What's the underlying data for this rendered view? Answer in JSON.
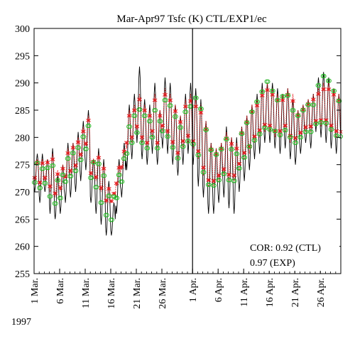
{
  "chart_data": {
    "type": "line",
    "title": "Mar-Apr97 Tsfc (K) CTL/EXP1/ec",
    "xlabel": "",
    "ylabel": "",
    "ylim": [
      255,
      300
    ],
    "yticks": [
      255,
      260,
      265,
      270,
      275,
      280,
      285,
      290,
      295,
      300
    ],
    "xlim_days": [
      1,
      61
    ],
    "x_tick_labels": [
      "1 Mar.",
      "6 Mar.",
      "11 Mar.",
      "16 Mar.",
      "21 Mar.",
      "26 Mar.",
      "1 Apr.",
      "6 Apr.",
      "11 Apr.",
      "16 Apr.",
      "21 Apr.",
      "26 Apr."
    ],
    "x_tick_days": [
      1,
      6,
      11,
      16,
      21,
      26,
      32,
      37,
      42,
      47,
      52,
      57
    ],
    "year_label": "1997",
    "divider_day": 32,
    "annotation": {
      "line1": "COR: 0.92 (CTL)",
      "line2": "0.97 (EXP)"
    },
    "series": [
      {
        "key": "ctl",
        "style": "solid black line",
        "color": "#000000",
        "daily_max": [
          277,
          277,
          276,
          278,
          273,
          275,
          279,
          279,
          281,
          283,
          285,
          276,
          278,
          276,
          272,
          268,
          276,
          279,
          286,
          288,
          293,
          287,
          286,
          290,
          285,
          291,
          290,
          286,
          284,
          288,
          290,
          289,
          287,
          283,
          279,
          278,
          279,
          282,
          280,
          280,
          282,
          284,
          286,
          288,
          290,
          290,
          290,
          289,
          288,
          289,
          287,
          285,
          286,
          287,
          288,
          291,
          292,
          291,
          289,
          288,
          287
        ],
        "daily_min": [
          270,
          268,
          270,
          266,
          265,
          266,
          268,
          269,
          270,
          272,
          274,
          268,
          266,
          264,
          262,
          262,
          266,
          269,
          274,
          276,
          279,
          276,
          275,
          277,
          275,
          278,
          277,
          275,
          273,
          275,
          277,
          275,
          271,
          269,
          266,
          266,
          268,
          269,
          267,
          266,
          270,
          272,
          274,
          276,
          277,
          279,
          279,
          278,
          277,
          278,
          276,
          275,
          277,
          279,
          278,
          281,
          280,
          279,
          278,
          277,
          278
        ]
      },
      {
        "key": "exp",
        "style": "dotted red line with x markers",
        "color": "#e8191c",
        "daily_max": [
          276,
          276,
          276,
          277,
          274,
          275,
          278,
          279,
          280,
          282,
          284,
          276,
          277,
          275,
          271,
          270,
          275,
          278,
          285,
          286,
          288,
          286,
          285,
          288,
          285,
          289,
          288,
          286,
          284,
          287,
          288,
          287,
          286,
          283,
          279,
          278,
          279,
          281,
          280,
          279,
          282,
          284,
          286,
          287,
          289,
          290,
          289,
          288,
          288,
          289,
          288,
          285,
          286,
          287,
          288,
          289,
          290,
          290,
          289,
          288,
          287
        ],
        "daily_min": [
          272,
          271,
          272,
          270,
          269,
          270,
          272,
          273,
          274,
          276,
          278,
          273,
          272,
          270,
          268,
          268,
          271,
          274,
          278,
          279,
          281,
          279,
          278,
          280,
          278,
          281,
          280,
          278,
          276,
          278,
          279,
          278,
          276,
          273,
          271,
          271,
          272,
          273,
          272,
          272,
          274,
          276,
          277,
          279,
          280,
          281,
          281,
          280,
          280,
          281,
          279,
          279,
          280,
          281,
          281,
          282,
          282,
          282,
          281,
          280,
          280
        ]
      },
      {
        "key": "obs",
        "style": "green open circles",
        "color": "#22b422",
        "daily_max": [
          276,
          275,
          275,
          276,
          273,
          274,
          277,
          278,
          279,
          281,
          283,
          276,
          276,
          274,
          270,
          270,
          274,
          277,
          283,
          285,
          286,
          285,
          284,
          286,
          284,
          288,
          287,
          285,
          283,
          286,
          287,
          289,
          287,
          283,
          279,
          278,
          279,
          281,
          279,
          278,
          282,
          284,
          286,
          288,
          290,
          292,
          290,
          288,
          289,
          289,
          286,
          285,
          286,
          287,
          287,
          291,
          293,
          292,
          290,
          288,
          287
        ],
        "daily_min": [
          271,
          270,
          271,
          268,
          267,
          268,
          271,
          272,
          273,
          275,
          277,
          272,
          270,
          267,
          265,
          264,
          268,
          271,
          276,
          278,
          280,
          278,
          277,
          279,
          277,
          280,
          279,
          277,
          275,
          277,
          278,
          277,
          275,
          272,
          270,
          270,
          271,
          272,
          271,
          271,
          273,
          275,
          277,
          278,
          279,
          280,
          280,
          280,
          279,
          280,
          279,
          278,
          279,
          280,
          280,
          281,
          281,
          281,
          280,
          279,
          279
        ]
      }
    ]
  }
}
